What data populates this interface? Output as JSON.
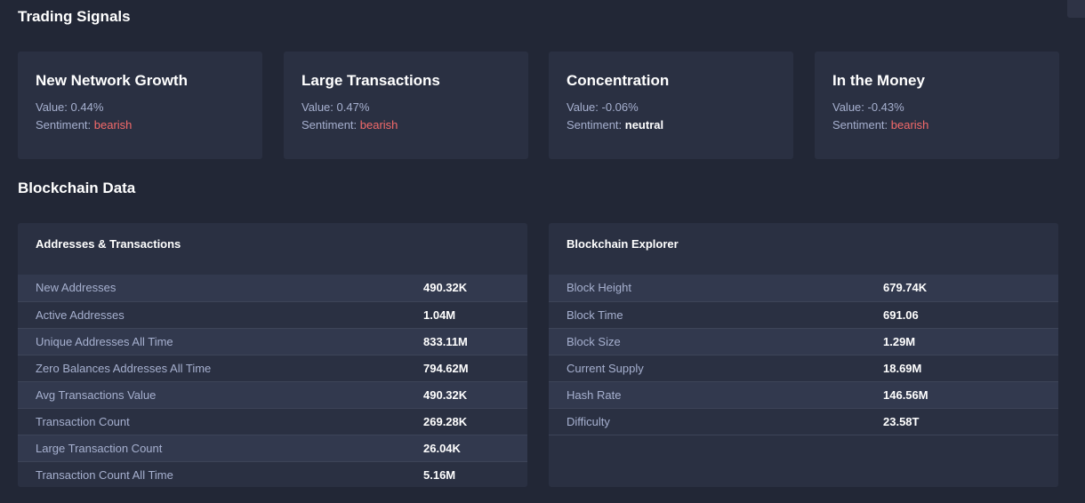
{
  "trading_signals": {
    "title": "Trading Signals",
    "cards": [
      {
        "title": "New Network Growth",
        "value_prefix": "Value: ",
        "value": "0.44%",
        "sentiment_prefix": "Sentiment: ",
        "sentiment": "bearish"
      },
      {
        "title": "Large Transactions",
        "value_prefix": "Value: ",
        "value": "0.47%",
        "sentiment_prefix": "Sentiment: ",
        "sentiment": "bearish"
      },
      {
        "title": "Concentration",
        "value_prefix": "Value: ",
        "value": "-0.06%",
        "sentiment_prefix": "Sentiment: ",
        "sentiment": "neutral"
      },
      {
        "title": "In the Money",
        "value_prefix": "Value: ",
        "value": "-0.43%",
        "sentiment_prefix": "Sentiment: ",
        "sentiment": "bearish"
      }
    ]
  },
  "blockchain_data": {
    "title": "Blockchain Data",
    "addresses_transactions": {
      "title": "Addresses & Transactions",
      "rows": [
        {
          "label": "New Addresses",
          "value": "490.32K"
        },
        {
          "label": "Active Addresses",
          "value": "1.04M"
        },
        {
          "label": "Unique Addresses All Time",
          "value": "833.11M"
        },
        {
          "label": "Zero Balances Addresses All Time",
          "value": "794.62M"
        },
        {
          "label": "Avg Transactions Value",
          "value": "490.32K"
        },
        {
          "label": "Transaction Count",
          "value": "269.28K"
        },
        {
          "label": "Large Transaction Count",
          "value": "26.04K"
        },
        {
          "label": "Transaction Count All Time",
          "value": "5.16M"
        }
      ]
    },
    "blockchain_explorer": {
      "title": "Blockchain Explorer",
      "rows": [
        {
          "label": "Block Height",
          "value": "679.74K"
        },
        {
          "label": "Block Time",
          "value": "691.06"
        },
        {
          "label": "Block Size",
          "value": "1.29M"
        },
        {
          "label": "Current Supply",
          "value": "18.69M"
        },
        {
          "label": "Hash Rate",
          "value": "146.56M"
        },
        {
          "label": "Difficulty",
          "value": "23.58T"
        }
      ]
    }
  },
  "colors": {
    "background": "#222736",
    "card": "#2a3042",
    "bearish": "#f46a6a",
    "muted_text": "#a6b0cf"
  }
}
